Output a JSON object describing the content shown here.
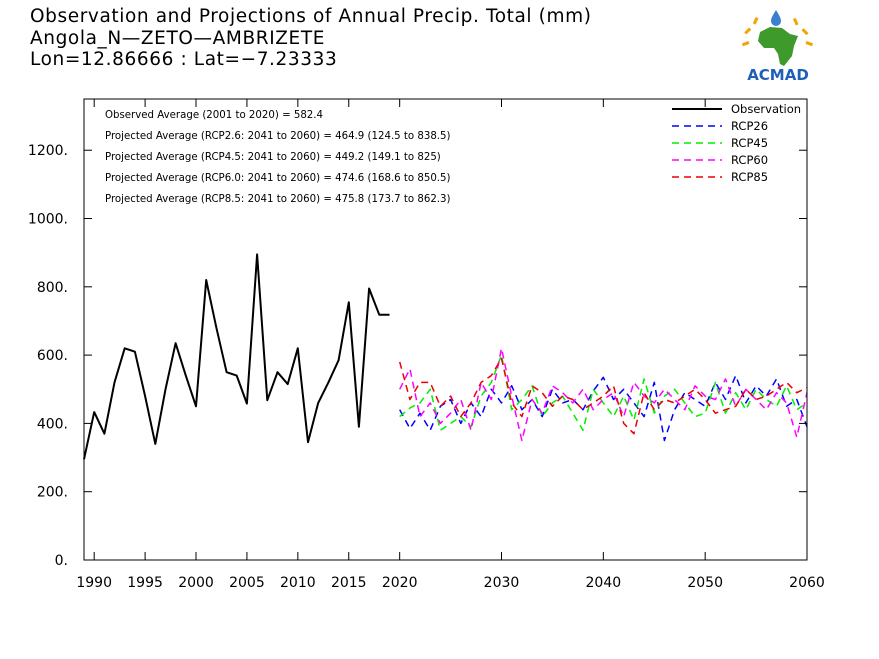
{
  "header": {
    "title": "Observation and Projections of Annual Precip. Total (mm)",
    "station": "Angola_N—ZETO—AMBRIZETE",
    "coords": "Lon=12.86666 : Lat=−7.23333"
  },
  "logo": {
    "text": "ACMAD",
    "icon": "africa-map-icon"
  },
  "chart_data": {
    "type": "line",
    "xlim": [
      1989,
      2060
    ],
    "ylim": [
      0,
      1350
    ],
    "x_ticks": [
      1990,
      1995,
      2000,
      2005,
      2010,
      2015,
      2020,
      2030,
      2040,
      2050,
      2060
    ],
    "y_ticks": [
      0,
      200,
      400,
      600,
      800,
      1000,
      1200
    ],
    "y_tick_labels": [
      "0.",
      "200.",
      "400.",
      "600.",
      "800.",
      "1000.",
      "1200."
    ],
    "grid": false,
    "legend_position": "top-right",
    "annotations": [
      "Observed Average (2001 to 2020) = 582.4",
      "Projected Average (RCP2.6: 2041 to 2060) = 464.9 (124.5 to 838.5)",
      "Projected Average (RCP4.5: 2041 to 2060) = 449.2 (149.1 to 825)",
      "Projected Average (RCP6.0: 2041 to 2060) = 474.6 (168.6 to 850.5)",
      "Projected Average (RCP8.5: 2041 to 2060) = 475.8 (173.7 to 862.3)"
    ],
    "series": [
      {
        "name": "Observation",
        "color": "#000000",
        "dashed": false,
        "x": [
          1989,
          1990,
          1991,
          1992,
          1993,
          1994,
          1995,
          1996,
          1997,
          1998,
          1999,
          2000,
          2001,
          2002,
          2003,
          2004,
          2005,
          2006,
          2007,
          2008,
          2009,
          2010,
          2011,
          2012,
          2013,
          2014,
          2015,
          2016,
          2017,
          2018,
          2019
        ],
        "y": [
          295,
          433,
          370,
          520,
          620,
          610,
          480,
          340,
          500,
          635,
          540,
          450,
          820,
          680,
          550,
          540,
          458,
          895,
          468,
          550,
          515,
          620,
          345,
          460,
          520,
          585,
          755,
          390,
          795,
          718,
          718
        ]
      },
      {
        "name": "RCP26",
        "color": "#0000ff",
        "dashed": true,
        "x": [
          2020,
          2021,
          2022,
          2023,
          2024,
          2025,
          2026,
          2027,
          2028,
          2029,
          2030,
          2031,
          2032,
          2033,
          2034,
          2035,
          2036,
          2037,
          2038,
          2039,
          2040,
          2041,
          2042,
          2043,
          2044,
          2045,
          2046,
          2047,
          2048,
          2049,
          2050,
          2051,
          2052,
          2053,
          2054,
          2055,
          2056,
          2057,
          2058,
          2059,
          2060
        ],
        "y": [
          440,
          385,
          430,
          380,
          450,
          470,
          400,
          460,
          420,
          500,
          460,
          510,
          440,
          470,
          420,
          500,
          460,
          470,
          440,
          495,
          535,
          470,
          500,
          460,
          420,
          520,
          350,
          440,
          490,
          470,
          450,
          520,
          470,
          540,
          460,
          510,
          480,
          530,
          450,
          470,
          390
        ]
      },
      {
        "name": "RCP45",
        "color": "#00ee00",
        "dashed": true,
        "x": [
          2020,
          2021,
          2022,
          2023,
          2024,
          2025,
          2026,
          2027,
          2028,
          2029,
          2030,
          2031,
          2032,
          2033,
          2034,
          2035,
          2036,
          2037,
          2038,
          2039,
          2040,
          2041,
          2042,
          2043,
          2044,
          2045,
          2046,
          2047,
          2048,
          2049,
          2050,
          2051,
          2052,
          2053,
          2054,
          2055,
          2056,
          2057,
          2058,
          2059,
          2060
        ],
        "y": [
          420,
          445,
          460,
          500,
          380,
          400,
          420,
          390,
          480,
          520,
          600,
          440,
          470,
          510,
          420,
          460,
          480,
          430,
          380,
          500,
          460,
          420,
          480,
          410,
          530,
          430,
          480,
          500,
          460,
          420,
          430,
          520,
          430,
          490,
          440,
          500,
          470,
          450,
          510,
          440,
          460
        ]
      },
      {
        "name": "RCP60",
        "color": "#ff00ff",
        "dashed": true,
        "x": [
          2020,
          2021,
          2022,
          2023,
          2024,
          2025,
          2026,
          2027,
          2028,
          2029,
          2030,
          2031,
          2032,
          2033,
          2034,
          2035,
          2036,
          2037,
          2038,
          2039,
          2040,
          2041,
          2042,
          2043,
          2044,
          2045,
          2046,
          2047,
          2048,
          2049,
          2050,
          2051,
          2052,
          2053,
          2054,
          2055,
          2056,
          2057,
          2058,
          2059,
          2060
        ],
        "y": [
          500,
          560,
          420,
          460,
          400,
          430,
          470,
          380,
          520,
          470,
          620,
          480,
          350,
          470,
          430,
          510,
          490,
          460,
          500,
          440,
          470,
          490,
          420,
          520,
          480,
          460,
          500,
          470,
          440,
          510,
          480,
          470,
          530,
          450,
          500,
          470,
          440,
          490,
          460,
          360,
          490
        ]
      },
      {
        "name": "RCP85",
        "color": "#ee0000",
        "dashed": true,
        "x": [
          2020,
          2021,
          2022,
          2023,
          2024,
          2025,
          2026,
          2027,
          2028,
          2029,
          2030,
          2031,
          2032,
          2033,
          2034,
          2035,
          2036,
          2037,
          2038,
          2039,
          2040,
          2041,
          2042,
          2043,
          2044,
          2045,
          2046,
          2047,
          2048,
          2049,
          2050,
          2051,
          2052,
          2053,
          2054,
          2055,
          2056,
          2057,
          2058,
          2059,
          2060
        ],
        "y": [
          580,
          470,
          520,
          520,
          450,
          480,
          420,
          460,
          520,
          540,
          590,
          460,
          420,
          510,
          490,
          450,
          480,
          470,
          440,
          460,
          480,
          510,
          400,
          370,
          490,
          440,
          470,
          460,
          480,
          500,
          470,
          430,
          440,
          450,
          500,
          470,
          480,
          500,
          520,
          490,
          505
        ]
      }
    ]
  }
}
